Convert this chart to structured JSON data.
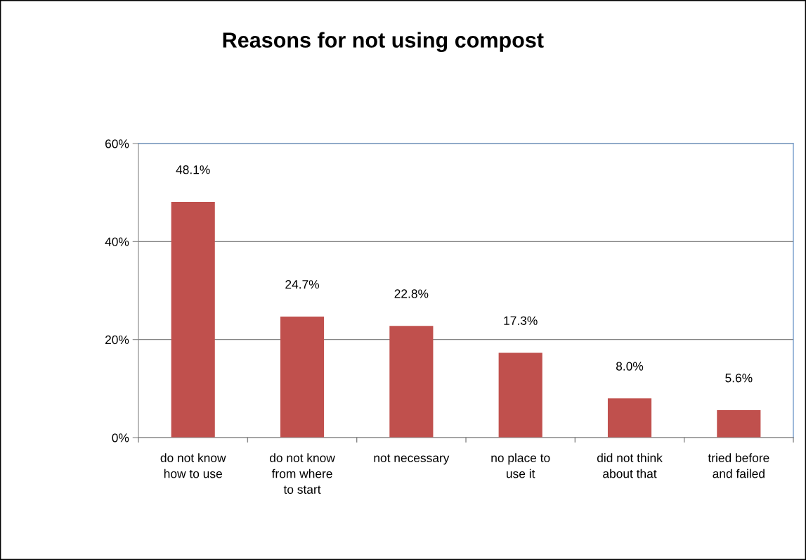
{
  "chart_data": {
    "type": "bar",
    "title": "Reasons for not using compost",
    "categories": [
      "do not know\nhow to use",
      "do not know\nfrom where\nto start",
      "not necessary",
      "no place to\nuse it",
      "did not think\nabout that",
      "tried before\nand failed"
    ],
    "values": [
      48.1,
      24.7,
      22.8,
      17.3,
      8.0,
      5.6
    ],
    "value_labels": [
      "48.1%",
      "24.7%",
      "22.8%",
      "17.3%",
      "8.0%",
      "5.6%"
    ],
    "color": "#c0504d",
    "ylim": [
      0,
      60
    ],
    "yticks": [
      {
        "value": 0,
        "label": "0%"
      },
      {
        "value": 20,
        "label": "20%"
      },
      {
        "value": 40,
        "label": "40%"
      },
      {
        "value": 60,
        "label": "60%"
      }
    ],
    "grid": "y"
  }
}
